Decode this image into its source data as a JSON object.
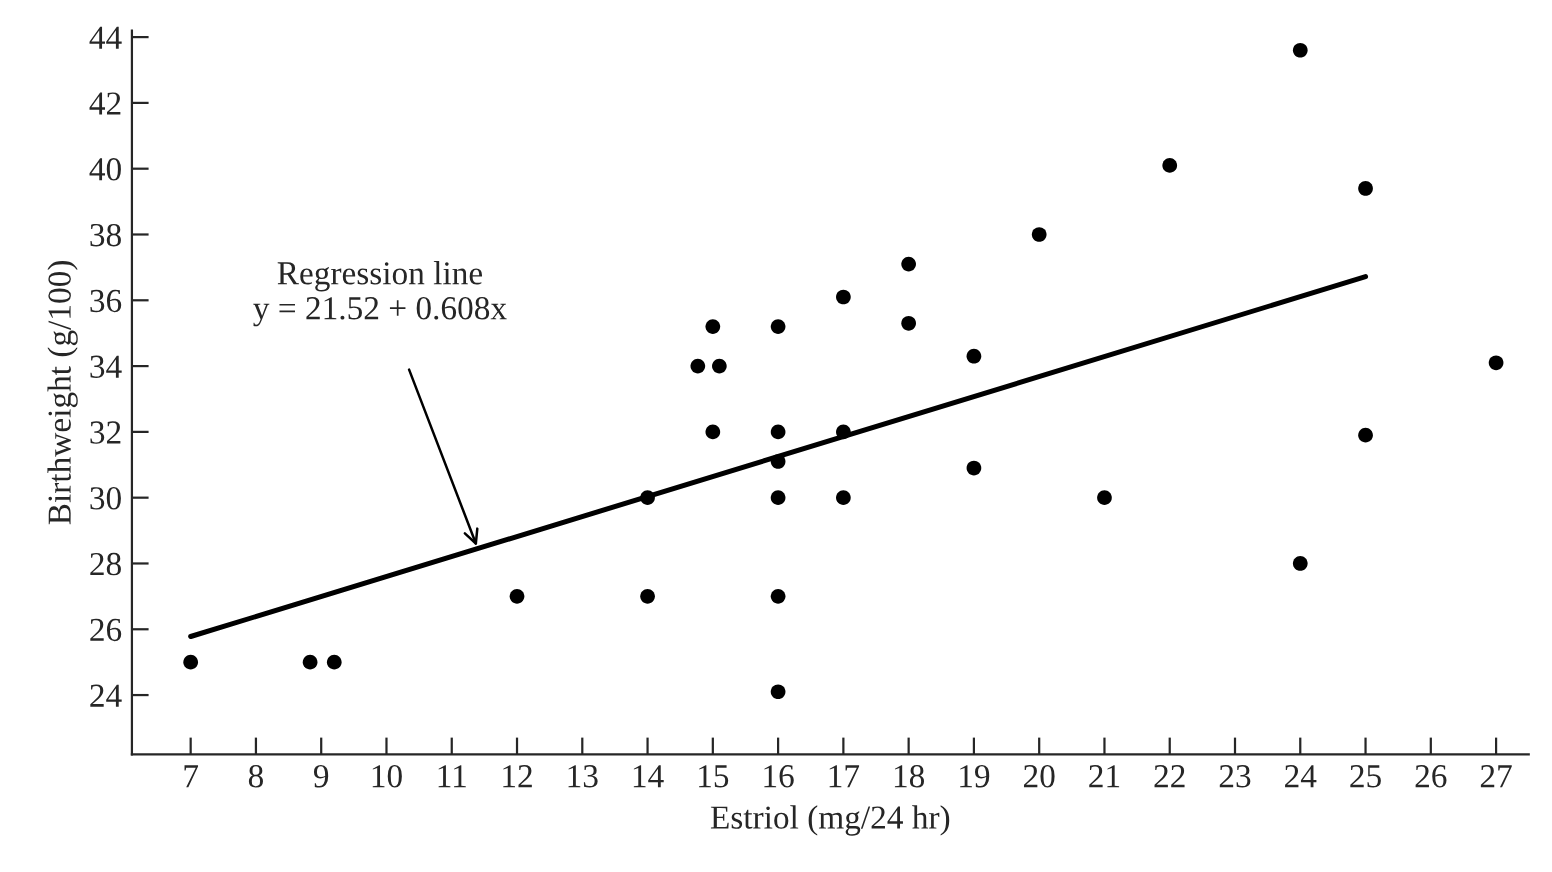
{
  "chart_data": {
    "type": "scatter",
    "xlabel": "Estriol (mg/24 hr)",
    "ylabel": "Birthweight (g/100)",
    "xlim": [
      6.1,
      27.5
    ],
    "ylim": [
      22.2,
      44.2
    ],
    "xticks": [
      7,
      8,
      9,
      10,
      11,
      12,
      13,
      14,
      15,
      16,
      17,
      18,
      19,
      20,
      21,
      22,
      23,
      24,
      25,
      26,
      27
    ],
    "yticks": [
      24,
      26,
      28,
      30,
      32,
      34,
      36,
      38,
      40,
      42,
      44
    ],
    "grid": false,
    "marker": "circle",
    "series": [
      {
        "color": "#000000",
        "x": [
          7,
          8.83,
          9.2,
          12,
          14,
          14,
          14.77,
          15.1,
          15,
          15,
          16,
          16,
          16,
          16,
          16,
          16,
          17,
          17,
          17,
          18,
          18,
          19,
          19,
          20,
          21,
          22,
          24,
          24,
          25,
          25,
          27
        ],
        "values": [
          25,
          25,
          25,
          27,
          27,
          30,
          34,
          34,
          35.2,
          32,
          35.2,
          32,
          31.1,
          30,
          27,
          24.1,
          36.1,
          32,
          30,
          37.1,
          35.3,
          34.3,
          30.9,
          38,
          30,
          40.1,
          43.6,
          28,
          39.4,
          31.9,
          34.1
        ]
      },
      {
        "type": "line",
        "marker": "none",
        "color": "#000000",
        "x": [
          7,
          25
        ],
        "values": [
          25.78,
          36.72
        ]
      }
    ],
    "annotations": [
      {
        "text": "Regression line\ny = 21.52 + 0.608x",
        "x": 11.4,
        "y": 28.45
      }
    ]
  }
}
